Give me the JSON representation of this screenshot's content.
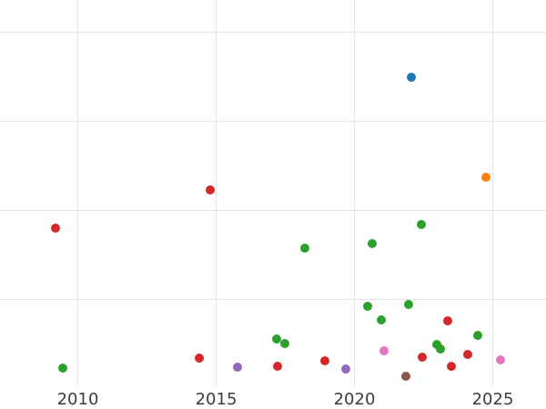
{
  "colors": {
    "background": "#ffffff",
    "gridline": "#e6e6e6",
    "tick_label": "#3c3c3c"
  },
  "chart_data": {
    "type": "scatter",
    "title": "",
    "xlabel": "",
    "ylabel": "",
    "grid": true,
    "legend_position": "none",
    "x_ticks": [
      {
        "value": 2010,
        "label": "2010"
      },
      {
        "value": 2015,
        "label": "2015"
      },
      {
        "value": 2020,
        "label": "2020"
      },
      {
        "value": 2025,
        "label": "2025"
      }
    ],
    "y_ticks_visible": false,
    "y_gridline_values": [
      1,
      2,
      3,
      4
    ],
    "xlim": [
      2007.2,
      2026.9
    ],
    "ylim": [
      0,
      4.36
    ],
    "series": [
      {
        "name": "blue",
        "color": "#1f77b4",
        "points": [
          [
            2022.06,
            3.49
          ]
        ]
      },
      {
        "name": "orange",
        "color": "#ff7f0e",
        "points": [
          [
            2024.74,
            2.37
          ]
        ]
      },
      {
        "name": "green",
        "color": "#2ca02c",
        "points": [
          [
            2009.47,
            0.24
          ],
          [
            2017.2,
            0.56
          ],
          [
            2017.47,
            0.51
          ],
          [
            2018.2,
            1.58
          ],
          [
            2020.49,
            0.93
          ],
          [
            2020.63,
            1.63
          ],
          [
            2020.98,
            0.77
          ],
          [
            2021.96,
            0.95
          ],
          [
            2022.41,
            1.84
          ],
          [
            2022.97,
            0.5
          ],
          [
            2023.12,
            0.45
          ],
          [
            2024.47,
            0.6
          ]
        ]
      },
      {
        "name": "red",
        "color": "#d62728",
        "points": [
          [
            2009.18,
            1.8
          ],
          [
            2014.39,
            0.35
          ],
          [
            2014.79,
            2.23
          ],
          [
            2017.22,
            0.26
          ],
          [
            2018.92,
            0.32
          ],
          [
            2022.45,
            0.36
          ],
          [
            2023.36,
            0.76
          ],
          [
            2023.49,
            0.26
          ],
          [
            2024.1,
            0.39
          ]
        ]
      },
      {
        "name": "purple",
        "color": "#9467bd",
        "points": [
          [
            2015.77,
            0.25
          ],
          [
            2019.68,
            0.23
          ]
        ]
      },
      {
        "name": "brown",
        "color": "#8c564b",
        "points": [
          [
            2021.86,
            0.14
          ]
        ]
      },
      {
        "name": "pink",
        "color": "#e377c2",
        "points": [
          [
            2021.07,
            0.43
          ],
          [
            2025.28,
            0.33
          ]
        ]
      }
    ]
  }
}
